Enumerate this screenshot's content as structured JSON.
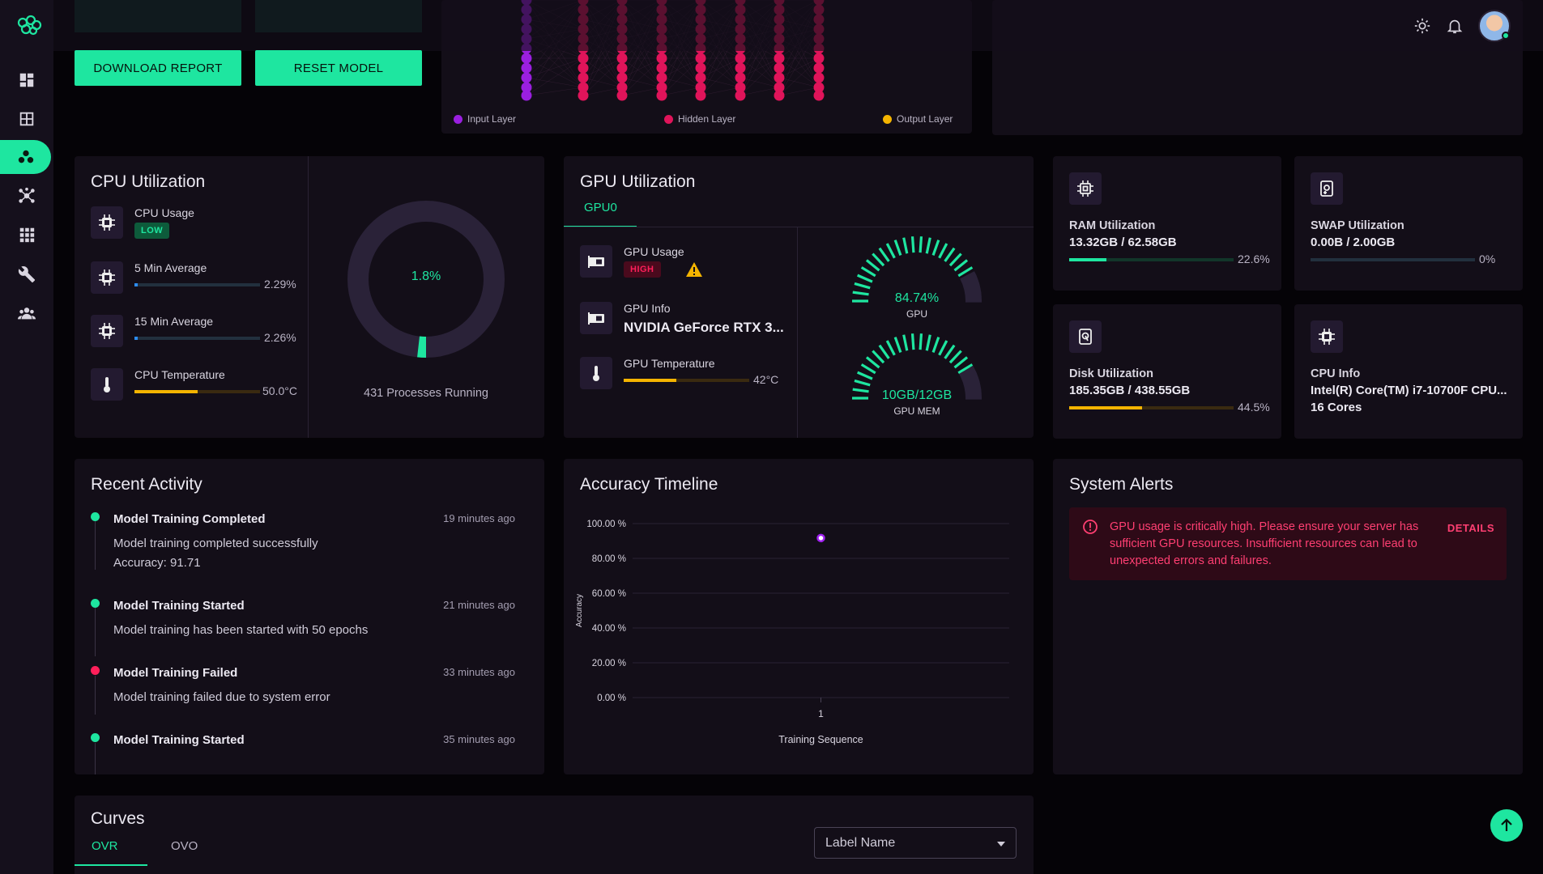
{
  "actions": {
    "download_report": "DOWNLOAD REPORT",
    "reset_model": "RESET MODEL"
  },
  "network": {
    "legend": [
      {
        "label": "Input Layer",
        "color": "#9a1fe0"
      },
      {
        "label": "Hidden Layer",
        "color": "#e0145a"
      },
      {
        "label": "Output Layer",
        "color": "#f4b400"
      }
    ]
  },
  "cpu": {
    "title": "CPU Utilization",
    "usage_label": "CPU Usage",
    "usage_badge": "LOW",
    "avg5_label": "5 Min Average",
    "avg5_pct": "2.29%",
    "avg5_value": 2.29,
    "avg15_label": "15 Min Average",
    "avg15_pct": "2.26%",
    "avg15_value": 2.26,
    "temp_label": "CPU Temperature",
    "temp_value": "50.0°C",
    "temp_fraction": 0.5,
    "donut_value": "1.8%",
    "donut_fraction": 0.018,
    "processes": "431 Processes Running"
  },
  "gpu": {
    "title": "GPU Utilization",
    "tab": "GPU0",
    "usage_label": "GPU Usage",
    "usage_badge": "HIGH",
    "info_label": "GPU Info",
    "info_value": "NVIDIA GeForce RTX 3...",
    "temp_label": "GPU Temperature",
    "temp_value": "42°C",
    "temp_fraction": 0.42,
    "gauge_gpu_value": "84.74%",
    "gauge_gpu_label": "GPU",
    "gauge_gpu_fraction": 0.8474,
    "gauge_mem_value": "10GB/12GB",
    "gauge_mem_label": "GPU MEM",
    "gauge_mem_fraction": 0.8333
  },
  "ram": {
    "label": "RAM Utilization",
    "value": "13.32GB / 62.58GB",
    "pct": "22.6%",
    "fraction": 0.226
  },
  "swap": {
    "label": "SWAP Utilization",
    "value": "0.00B / 2.00GB",
    "pct": "0%",
    "fraction": 0
  },
  "disk": {
    "label": "Disk Utilization",
    "value": "185.35GB / 438.55GB",
    "pct": "44.5%",
    "fraction": 0.445
  },
  "cpu_info": {
    "label": "CPU Info",
    "value": "Intel(R) Core(TM) i7-10700F CPU...",
    "cores": "16 Cores"
  },
  "activity": {
    "title": "Recent Activity",
    "items": [
      {
        "title": "Model Training Completed",
        "time": "19 minutes ago",
        "text1": "Model training completed successfully",
        "text2": "Accuracy: 91.71",
        "color": "#1ee6a0"
      },
      {
        "title": "Model Training Started",
        "time": "21 minutes ago",
        "text1": "Model training has been started with 50 epochs",
        "color": "#1ee6a0"
      },
      {
        "title": "Model Training Failed",
        "time": "33 minutes ago",
        "text1": "Model training failed due to system error",
        "color": "#ff1f5a"
      },
      {
        "title": "Model Training Started",
        "time": "35 minutes ago",
        "color": "#1ee6a0"
      }
    ]
  },
  "accuracy": {
    "title": "Accuracy Timeline",
    "chart_data": {
      "type": "scatter",
      "title": "Accuracy Timeline",
      "xlabel": "Training Sequence",
      "ylabel": "Accuracy",
      "x": [
        1
      ],
      "y": [
        91.71
      ],
      "ylim": [
        0,
        100
      ],
      "yticks": [
        "100.00 %",
        "80.00 %",
        "60.00 %",
        "40.00 %",
        "20.00 %",
        "0.00 %"
      ],
      "xticks": [
        "1"
      ],
      "grid": true,
      "point_color": "#a020f0"
    }
  },
  "alerts": {
    "title": "System Alerts",
    "message": "GPU usage is critically high. Please ensure your server has sufficient GPU resources. Insufficient resources can lead to unexpected errors and failures.",
    "details": "DETAILS"
  },
  "curves": {
    "title": "Curves",
    "tabs": [
      "OVR",
      "OVO"
    ],
    "select_value": "Label Name"
  },
  "colors": {
    "accent": "#1ee6a0",
    "danger": "#ff1f5a",
    "warning": "#f4b400",
    "card": "#130e18"
  }
}
